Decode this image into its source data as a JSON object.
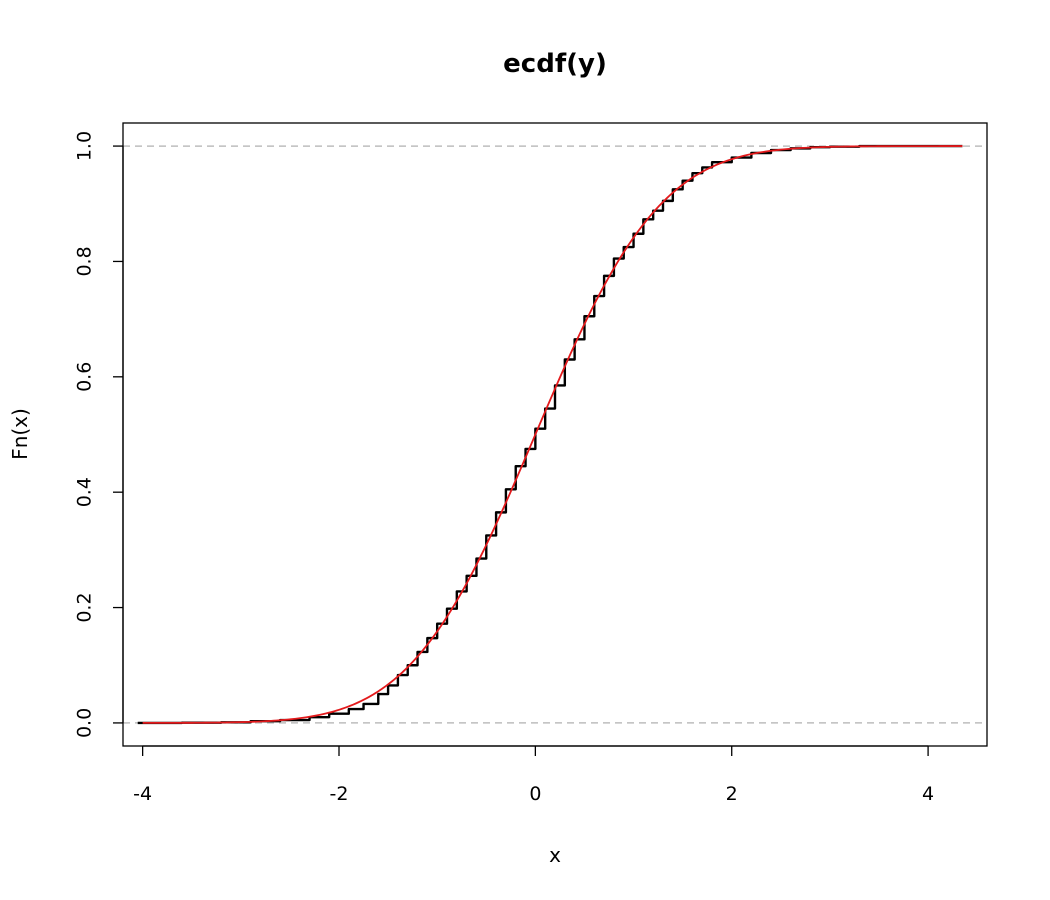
{
  "chart_data": {
    "type": "line",
    "title": "ecdf(y)",
    "xlabel": "x",
    "ylabel": "Fn(x)",
    "xlim": [
      -4.2,
      4.6
    ],
    "ylim": [
      -0.04,
      1.04
    ],
    "xticks": [
      -4,
      -2,
      0,
      2,
      4
    ],
    "yticks": [
      0.0,
      0.2,
      0.4,
      0.6,
      0.8,
      1.0
    ],
    "ytick_labels": [
      "0.0",
      "0.2",
      "0.4",
      "0.6",
      "0.8",
      "1.0"
    ],
    "reference_lines": [
      0,
      1
    ],
    "series": [
      {
        "color": "#000000",
        "style": "step",
        "x": [
          -4.05,
          -3.6,
          -3.2,
          -2.9,
          -2.6,
          -2.3,
          -2.1,
          -1.9,
          -1.75,
          -1.6,
          -1.5,
          -1.4,
          -1.3,
          -1.2,
          -1.1,
          -1.0,
          -0.9,
          -0.8,
          -0.7,
          -0.6,
          -0.5,
          -0.4,
          -0.3,
          -0.2,
          -0.1,
          0.0,
          0.1,
          0.2,
          0.3,
          0.4,
          0.5,
          0.6,
          0.7,
          0.8,
          0.9,
          1.0,
          1.1,
          1.2,
          1.3,
          1.4,
          1.5,
          1.6,
          1.7,
          1.8,
          2.0,
          2.2,
          2.4,
          2.6,
          2.8,
          3.0,
          3.3,
          3.6,
          4.0,
          4.35
        ],
        "y": [
          0.0,
          0.0005,
          0.001,
          0.003,
          0.005,
          0.01,
          0.016,
          0.024,
          0.033,
          0.05,
          0.065,
          0.083,
          0.1,
          0.123,
          0.147,
          0.172,
          0.198,
          0.228,
          0.255,
          0.285,
          0.325,
          0.365,
          0.405,
          0.445,
          0.475,
          0.51,
          0.545,
          0.585,
          0.63,
          0.665,
          0.705,
          0.74,
          0.775,
          0.805,
          0.825,
          0.848,
          0.873,
          0.888,
          0.905,
          0.925,
          0.94,
          0.953,
          0.963,
          0.972,
          0.98,
          0.988,
          0.993,
          0.996,
          0.998,
          0.999,
          1.0,
          1.0,
          1.0,
          1.0
        ]
      },
      {
        "color": "#e31a1c",
        "style": "normal-cdf",
        "mean": 0,
        "sd": 1,
        "x_range": [
          -4,
          4.35
        ]
      }
    ],
    "reference_line_color": "#bdbdbd"
  }
}
